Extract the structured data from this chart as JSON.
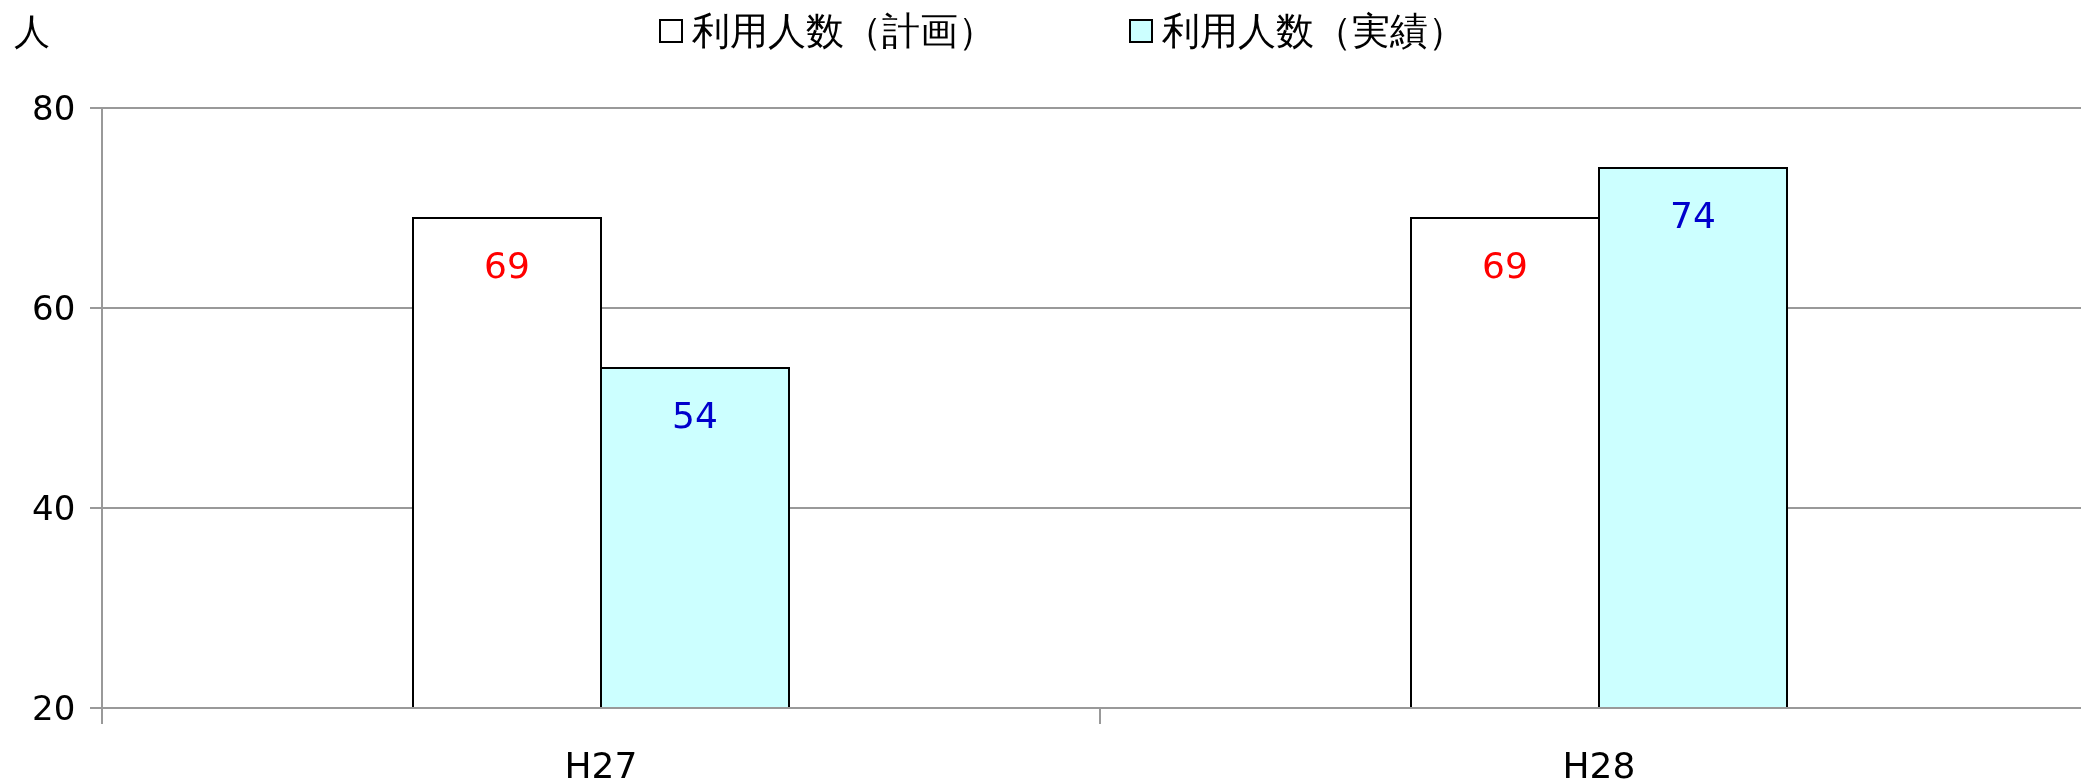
{
  "chart_data": {
    "type": "bar",
    "ylabel": "人",
    "categories": [
      "H27",
      "H28"
    ],
    "series": [
      {
        "name": "利用人数（計画）",
        "color": "#ffffff",
        "values": [
          69,
          69
        ]
      },
      {
        "name": "利用人数（実績）",
        "color": "#ccffff",
        "values": [
          54,
          74
        ]
      }
    ],
    "ylim": [
      20,
      80
    ],
    "yticks": [
      20,
      40,
      60,
      80
    ],
    "grid": "y",
    "legend": "top",
    "data_labels": true
  }
}
